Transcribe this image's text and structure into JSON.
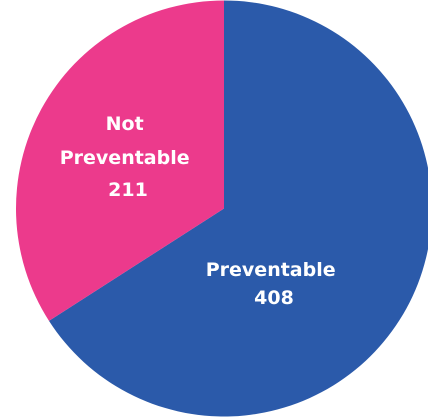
{
  "chart_data": {
    "type": "pie",
    "title": "",
    "slices": [
      {
        "label": "Preventable",
        "value": 408,
        "color": "#2b5aaa"
      },
      {
        "label": "Not Preventable",
        "value": 211,
        "color": "#ec3a8c"
      }
    ],
    "label_lines": [
      [
        "Preventable",
        "408"
      ],
      [
        "Not",
        "Preventable",
        "211"
      ]
    ],
    "start": "top",
    "direction": "clockwise",
    "legend": "none"
  }
}
